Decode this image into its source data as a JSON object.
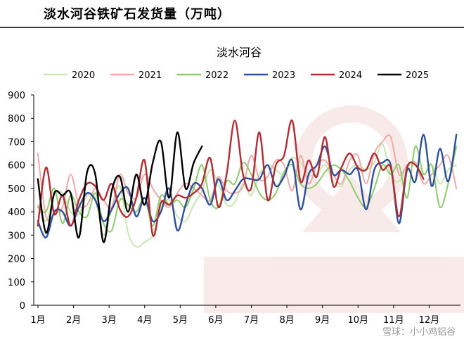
{
  "page_title": "淡水河谷铁矿石发货量（万吨）",
  "watermark": "雪球：小小鸡铝谷",
  "chart_data": {
    "type": "line",
    "title": "淡水河谷",
    "xlabel": "",
    "ylabel": "",
    "ylim": [
      0,
      900
    ],
    "yticks": [
      0,
      100,
      200,
      300,
      400,
      500,
      600,
      700,
      800,
      900
    ],
    "xlim": [
      0,
      52
    ],
    "month_labels": [
      "1月",
      "2月",
      "3月",
      "4月",
      "5月",
      "6月",
      "7月",
      "8月",
      "9月",
      "10月",
      "11月",
      "12月"
    ],
    "legend_position": "top",
    "grid": false,
    "series": [
      {
        "name": "2020",
        "color": "#c9e6b4",
        "values": [
          430,
          360,
          470,
          480,
          400,
          390,
          470,
          460,
          300,
          410,
          510,
          310,
          250,
          270,
          300,
          420,
          450,
          380,
          360,
          430,
          490,
          580,
          520,
          430,
          440,
          520,
          470,
          560,
          600,
          580,
          560,
          630,
          610,
          560,
          560,
          600,
          530,
          510,
          580,
          600,
          580,
          610,
          690,
          560,
          530,
          590,
          610,
          560,
          600,
          520,
          580,
          600
        ]
      },
      {
        "name": "2021",
        "color": "#eeaaaa",
        "values": [
          650,
          380,
          390,
          420,
          560,
          430,
          430,
          500,
          450,
          420,
          560,
          480,
          460,
          560,
          500,
          450,
          420,
          480,
          520,
          500,
          470,
          450,
          550,
          490,
          480,
          510,
          640,
          540,
          550,
          620,
          600,
          490,
          640,
          520,
          600,
          620,
          560,
          520,
          620,
          640,
          520,
          650,
          700,
          720,
          560,
          600,
          610,
          520,
          560,
          600,
          640,
          500
        ]
      },
      {
        "name": "2022",
        "color": "#8fcc6e",
        "values": [
          420,
          400,
          500,
          350,
          470,
          400,
          380,
          480,
          350,
          320,
          450,
          430,
          400,
          460,
          340,
          470,
          430,
          450,
          420,
          500,
          600,
          450,
          420,
          530,
          520,
          610,
          560,
          480,
          450,
          480,
          570,
          600,
          520,
          500,
          520,
          570,
          600,
          580,
          530,
          460,
          420,
          500,
          600,
          560,
          600,
          460,
          680,
          560,
          600,
          420,
          520,
          680
        ]
      },
      {
        "name": "2023",
        "color": "#2e4f9a",
        "values": [
          360,
          290,
          400,
          400,
          340,
          420,
          480,
          450,
          360,
          410,
          480,
          500,
          380,
          460,
          360,
          400,
          500,
          320,
          430,
          520,
          500,
          430,
          540,
          450,
          490,
          540,
          540,
          540,
          600,
          510,
          550,
          620,
          410,
          560,
          600,
          680,
          560,
          580,
          560,
          580,
          410,
          580,
          610,
          600,
          350,
          580,
          530,
          730,
          510,
          670,
          530,
          730
        ]
      },
      {
        "name": "2024",
        "color": "#b22c34",
        "values": [
          340,
          590,
          390,
          470,
          340,
          450,
          520,
          510,
          450,
          520,
          410,
          380,
          460,
          620,
          300,
          440,
          430,
          470,
          460,
          480,
          520,
          630,
          420,
          560,
          790,
          560,
          500,
          740,
          450,
          600,
          640,
          790,
          530,
          620,
          550,
          720,
          510,
          590,
          650,
          590,
          580,
          650,
          580,
          590,
          380,
          590,
          600,
          540
        ]
      },
      {
        "name": "2025",
        "color": "#000000",
        "values": [
          540,
          310,
          480,
          470,
          480,
          290,
          570,
          560,
          270,
          490,
          550,
          400,
          560,
          430,
          610,
          700,
          460,
          740,
          500,
          610,
          680
        ]
      }
    ]
  }
}
